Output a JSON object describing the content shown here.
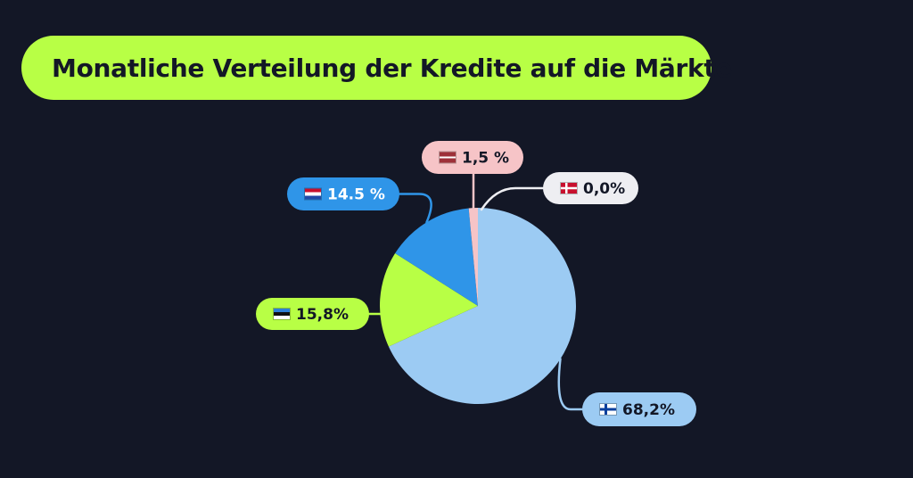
{
  "title": "Monatliche Verteilung der Kredite auf die Märkte",
  "colors": {
    "background": "#131726",
    "title_pill": "#b8ff45",
    "title_text": "#131726"
  },
  "chart_data": {
    "type": "pie",
    "title": "Monatliche Verteilung der Kredite auf die Märkte",
    "slices": [
      {
        "label": "68,2%",
        "value": 68.2,
        "flag": "finland-flag-icon",
        "color": "#9ccbf3",
        "text_color": "#131726"
      },
      {
        "label": "15,8%",
        "value": 15.8,
        "flag": "estonia-flag-icon",
        "color": "#b8ff45",
        "text_color": "#131726"
      },
      {
        "label": "14.5 %",
        "value": 14.5,
        "flag": "netherlands-flag-icon",
        "color": "#2f95e8",
        "text_color": "#ffffff"
      },
      {
        "label": "1,5 %",
        "value": 1.5,
        "flag": "latvia-flag-icon",
        "color": "#f6c4c7",
        "text_color": "#131726"
      },
      {
        "label": "0,0%",
        "value": 0.0,
        "flag": "denmark-flag-icon",
        "color": "#eeeef2",
        "text_color": "#131726"
      }
    ]
  }
}
